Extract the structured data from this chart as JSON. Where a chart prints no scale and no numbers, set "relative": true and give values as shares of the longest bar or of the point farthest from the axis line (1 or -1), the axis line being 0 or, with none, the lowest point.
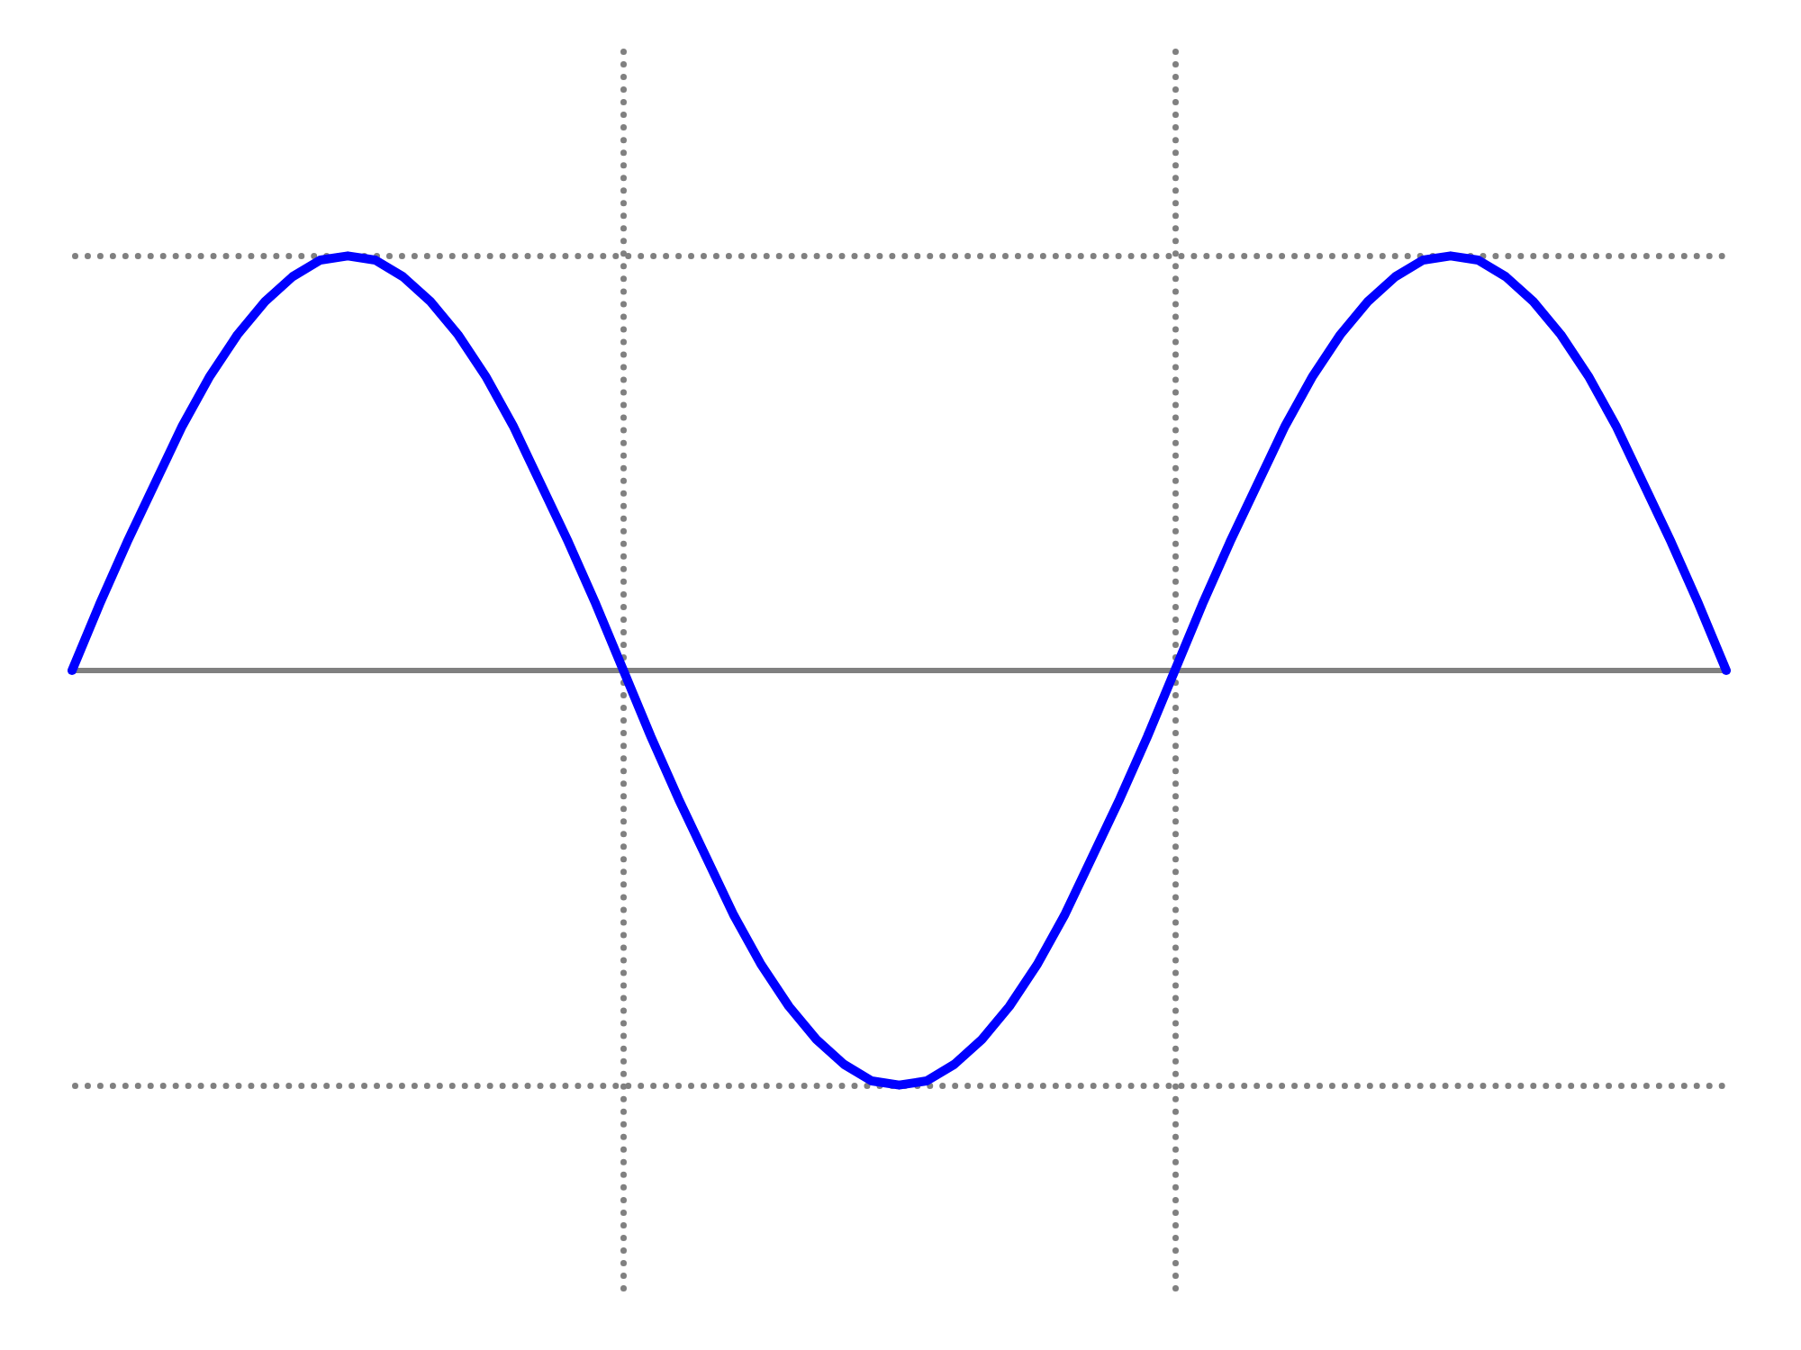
{
  "chart_data": {
    "type": "line",
    "relative": true,
    "legend": false,
    "marker": "none",
    "line_style": "solid",
    "categories": [
      null,
      null,
      null,
      null,
      null,
      null,
      null,
      null,
      null,
      null,
      null,
      null,
      null,
      null,
      null,
      null,
      null,
      null,
      null,
      null,
      null,
      null,
      null,
      null,
      null,
      null,
      null,
      null,
      null,
      null,
      null,
      null,
      null,
      null,
      null,
      null,
      null,
      null,
      null,
      null,
      null,
      null,
      null,
      null,
      null,
      null,
      null,
      null,
      null,
      null,
      null,
      null,
      null,
      null,
      null,
      null,
      null,
      null,
      null,
      null,
      null
    ],
    "series": [
      {
        "color": "#0000ff",
        "values": [
          0,
          0.16,
          0.31,
          0.45,
          0.59,
          0.71,
          0.81,
          0.89,
          0.95,
          0.99,
          1,
          0.99,
          0.95,
          0.89,
          0.81,
          0.71,
          0.59,
          0.45,
          0.31,
          0.16,
          0,
          -0.16,
          -0.31,
          -0.45,
          -0.59,
          -0.71,
          -0.81,
          -0.89,
          -0.95,
          -0.99,
          -1,
          -0.99,
          -0.95,
          -0.89,
          -0.81,
          -0.71,
          -0.59,
          -0.45,
          -0.31,
          -0.16,
          0,
          0.16,
          0.31,
          0.45,
          0.59,
          0.71,
          0.81,
          0.89,
          0.95,
          0.99,
          1,
          0.99,
          0.95,
          0.89,
          0.81,
          0.71,
          0.59,
          0.45,
          0.31,
          0.16,
          0
        ]
      }
    ]
  }
}
